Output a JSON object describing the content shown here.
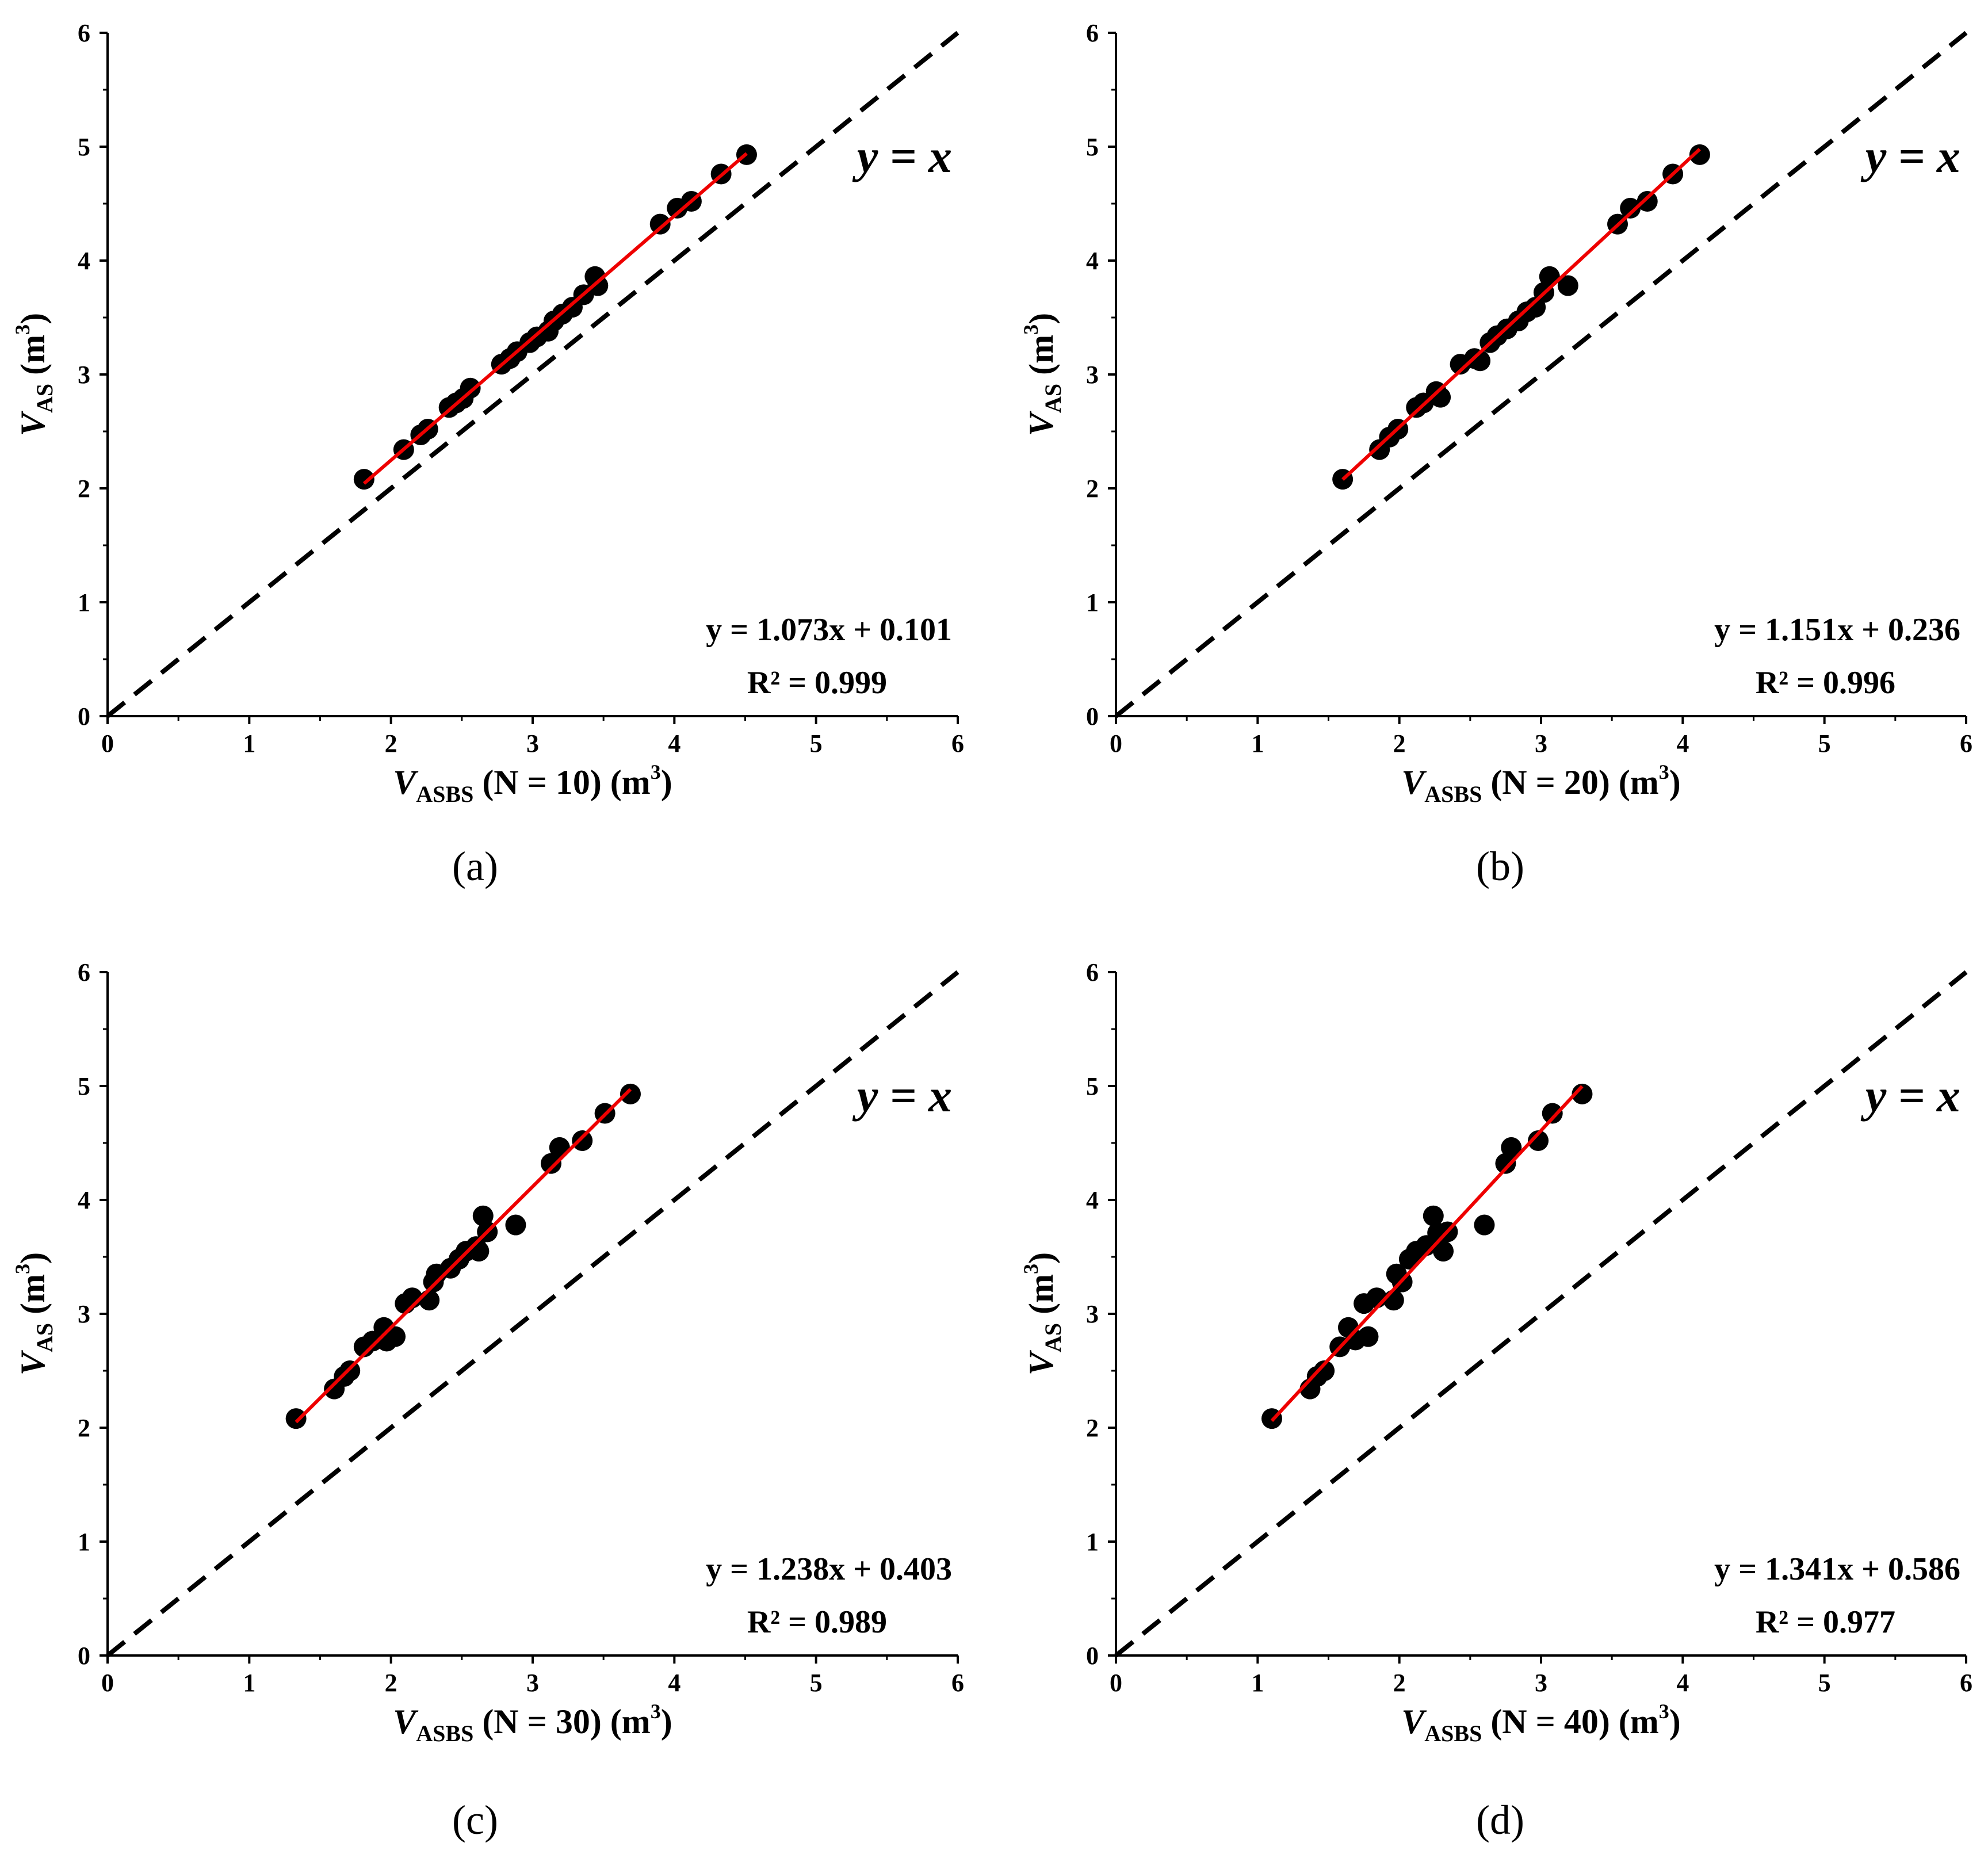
{
  "chart_data": [
    {
      "type": "scatter",
      "panel_label": "(a)",
      "n_label": "N = 10",
      "xlabel": {
        "var": "V",
        "sub": "ASBS",
        "paren": "(N = 10)",
        "unit": "(m",
        "unit_exp": "3",
        "close": ")"
      },
      "ylabel": {
        "var": "V",
        "sub": "AS",
        "unit": "(m",
        "unit_exp": "3",
        "close": ")"
      },
      "xlim": [
        0,
        6
      ],
      "ylim": [
        0,
        6
      ],
      "ticks": [
        0,
        1,
        2,
        3,
        4,
        5,
        6
      ],
      "reference_line": {
        "label": "y = x",
        "slope": 1,
        "intercept": 0,
        "style": "dashed",
        "color": "#000000"
      },
      "fit": {
        "equation": "y = 1.073x + 0.101",
        "r2_text": "R² = 0.999",
        "slope": 1.073,
        "intercept": 0.101,
        "x_range": [
          1.81,
          4.51
        ],
        "color": "#ee0000"
      },
      "points": {
        "x": [
          1.81,
          2.09,
          2.21,
          2.26,
          2.41,
          2.46,
          2.51,
          2.56,
          2.78,
          2.84,
          2.89,
          2.98,
          3.03,
          3.11,
          3.15,
          3.21,
          3.28,
          3.36,
          3.44,
          3.46,
          3.9,
          4.02,
          4.12,
          4.33,
          4.51
        ],
        "y": [
          2.08,
          2.34,
          2.47,
          2.52,
          2.71,
          2.75,
          2.79,
          2.88,
          3.09,
          3.14,
          3.2,
          3.28,
          3.33,
          3.38,
          3.47,
          3.53,
          3.59,
          3.7,
          3.86,
          3.78,
          4.32,
          4.46,
          4.52,
          4.76,
          4.93
        ]
      },
      "marker_color": "#000000"
    },
    {
      "type": "scatter",
      "panel_label": "(b)",
      "n_label": "N = 20",
      "xlabel": {
        "var": "V",
        "sub": "ASBS",
        "paren": "(N = 20)",
        "unit": "(m",
        "unit_exp": "3",
        "close": ")"
      },
      "ylabel": {
        "var": "V",
        "sub": "AS",
        "unit": "(m",
        "unit_exp": "3",
        "close": ")"
      },
      "xlim": [
        0,
        6
      ],
      "ylim": [
        0,
        6
      ],
      "ticks": [
        0,
        1,
        2,
        3,
        4,
        5,
        6
      ],
      "reference_line": {
        "label": "y = x",
        "slope": 1,
        "intercept": 0,
        "style": "dashed",
        "color": "#000000"
      },
      "fit": {
        "equation": "y = 1.151x + 0.236",
        "r2_text": "R² = 0.996",
        "slope": 1.151,
        "intercept": 0.236,
        "x_range": [
          1.6,
          4.12
        ],
        "color": "#ee0000"
      },
      "points": {
        "x": [
          1.6,
          1.86,
          1.93,
          1.99,
          2.12,
          2.17,
          2.26,
          2.29,
          2.43,
          2.53,
          2.57,
          2.64,
          2.69,
          2.76,
          2.84,
          2.9,
          2.96,
          3.02,
          3.06,
          3.19,
          3.54,
          3.63,
          3.75,
          3.93,
          4.12
        ],
        "y": [
          2.08,
          2.34,
          2.45,
          2.52,
          2.71,
          2.75,
          2.85,
          2.8,
          3.09,
          3.14,
          3.12,
          3.28,
          3.34,
          3.4,
          3.47,
          3.55,
          3.59,
          3.72,
          3.86,
          3.78,
          4.32,
          4.46,
          4.52,
          4.76,
          4.93
        ]
      },
      "marker_color": "#000000"
    },
    {
      "type": "scatter",
      "panel_label": "(c)",
      "n_label": "N = 30",
      "xlabel": {
        "var": "V",
        "sub": "ASBS",
        "paren": "(N = 30)",
        "unit": "(m",
        "unit_exp": "3",
        "close": ")"
      },
      "ylabel": {
        "var": "V",
        "sub": "AS",
        "unit": "(m",
        "unit_exp": "3",
        "close": ")"
      },
      "xlim": [
        0,
        6
      ],
      "ylim": [
        0,
        6
      ],
      "ticks": [
        0,
        1,
        2,
        3,
        4,
        5,
        6
      ],
      "reference_line": {
        "label": "y = x",
        "slope": 1,
        "intercept": 0,
        "style": "dashed",
        "color": "#000000"
      },
      "fit": {
        "equation": "y = 1.238x + 0.403",
        "r2_text": "R² = 0.989",
        "slope": 1.238,
        "intercept": 0.403,
        "x_range": [
          1.33,
          3.69
        ],
        "color": "#ee0000"
      },
      "points": {
        "x": [
          1.33,
          1.6,
          1.67,
          1.71,
          1.81,
          1.87,
          1.95,
          1.97,
          2.03,
          2.1,
          2.15,
          2.27,
          2.3,
          2.32,
          2.42,
          2.48,
          2.53,
          2.6,
          2.62,
          2.65,
          2.68,
          2.88,
          3.13,
          3.19,
          3.35,
          3.51,
          3.69
        ],
        "y": [
          2.08,
          2.34,
          2.45,
          2.5,
          2.71,
          2.76,
          2.88,
          2.76,
          2.8,
          3.09,
          3.14,
          3.12,
          3.28,
          3.35,
          3.4,
          3.48,
          3.55,
          3.59,
          3.55,
          3.86,
          3.72,
          3.78,
          4.32,
          4.46,
          4.52,
          4.76,
          4.93
        ]
      },
      "marker_color": "#000000"
    },
    {
      "type": "scatter",
      "panel_label": "(d)",
      "n_label": "N = 40",
      "xlabel": {
        "var": "V",
        "sub": "ASBS",
        "paren": "(N = 40)",
        "unit": "(m",
        "unit_exp": "3",
        "close": ")"
      },
      "ylabel": {
        "var": "V",
        "sub": "AS",
        "unit": "(m",
        "unit_exp": "3",
        "close": ")"
      },
      "xlim": [
        0,
        6
      ],
      "ylim": [
        0,
        6
      ],
      "ticks": [
        0,
        1,
        2,
        3,
        4,
        5,
        6
      ],
      "reference_line": {
        "label": "y = x",
        "slope": 1,
        "intercept": 0,
        "style": "dashed",
        "color": "#000000"
      },
      "fit": {
        "equation": "y = 1.341x + 0.586",
        "r2_text": "R² = 0.977",
        "slope": 1.341,
        "intercept": 0.586,
        "x_range": [
          1.1,
          3.29
        ],
        "color": "#ee0000"
      },
      "points": {
        "x": [
          1.1,
          1.37,
          1.42,
          1.47,
          1.58,
          1.64,
          1.69,
          1.75,
          1.78,
          1.84,
          1.96,
          1.98,
          2.02,
          2.07,
          2.12,
          2.19,
          2.24,
          2.27,
          2.31,
          2.34,
          2.6,
          2.75,
          2.79,
          2.98,
          3.08,
          3.29
        ],
        "y": [
          2.08,
          2.34,
          2.45,
          2.5,
          2.71,
          2.88,
          2.77,
          3.09,
          2.8,
          3.14,
          3.12,
          3.35,
          3.28,
          3.48,
          3.55,
          3.6,
          3.86,
          3.71,
          3.55,
          3.72,
          3.78,
          4.32,
          4.46,
          4.52,
          4.76,
          4.93
        ]
      },
      "marker_color": "#000000"
    }
  ]
}
